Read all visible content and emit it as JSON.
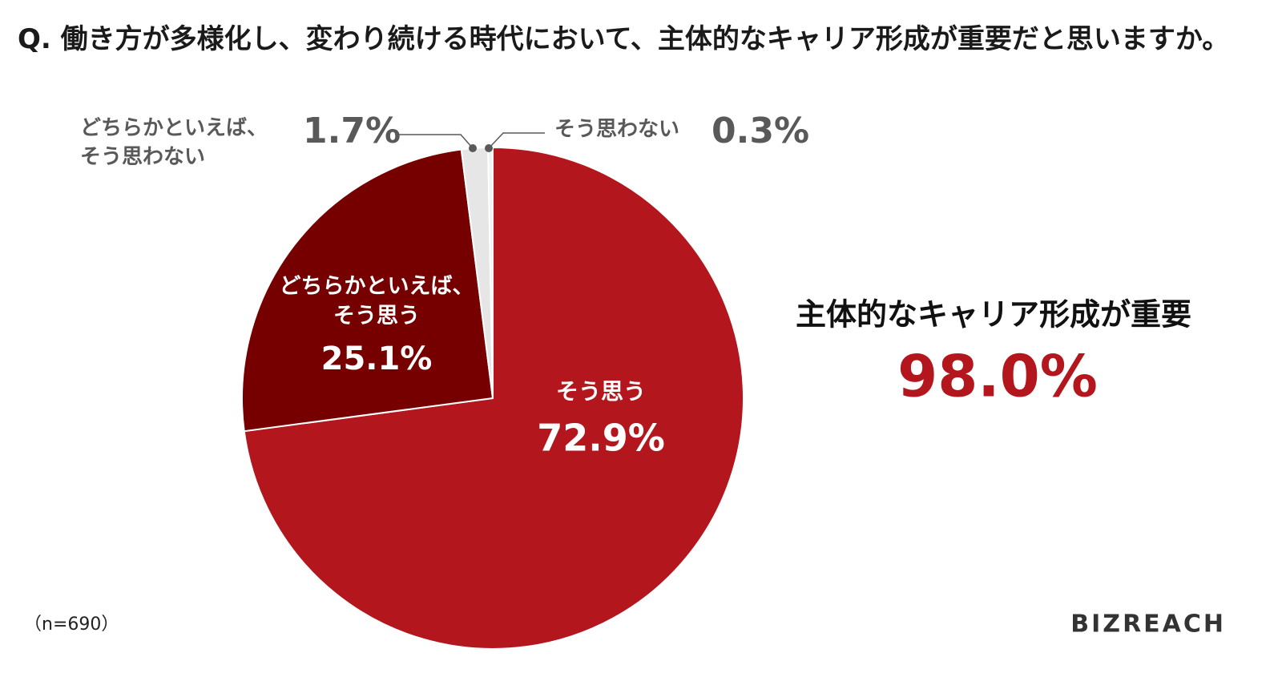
{
  "chart_data": {
    "type": "pie",
    "title": "Q. 働き方が多様化し、変わり続ける時代において、主体的なキャリア形成が重要だと思いますか。",
    "categories": [
      "そう思う",
      "どちらかといえば、そう思う",
      "どちらかといえば、そう思わない",
      "そう思わない"
    ],
    "values": [
      72.9,
      25.1,
      1.7,
      0.3
    ],
    "value_labels": [
      "72.9%",
      "25.1%",
      "1.7%",
      "0.3%"
    ],
    "colors": [
      "#b3161d",
      "#760000",
      "#e6e6e6",
      "#f2f2f2"
    ],
    "annotation": {
      "label": "主体的なキャリア形成が重要",
      "value": 98.0,
      "value_label": "98.0%"
    },
    "note": "（n=690）",
    "logo": "BIZREACH"
  }
}
